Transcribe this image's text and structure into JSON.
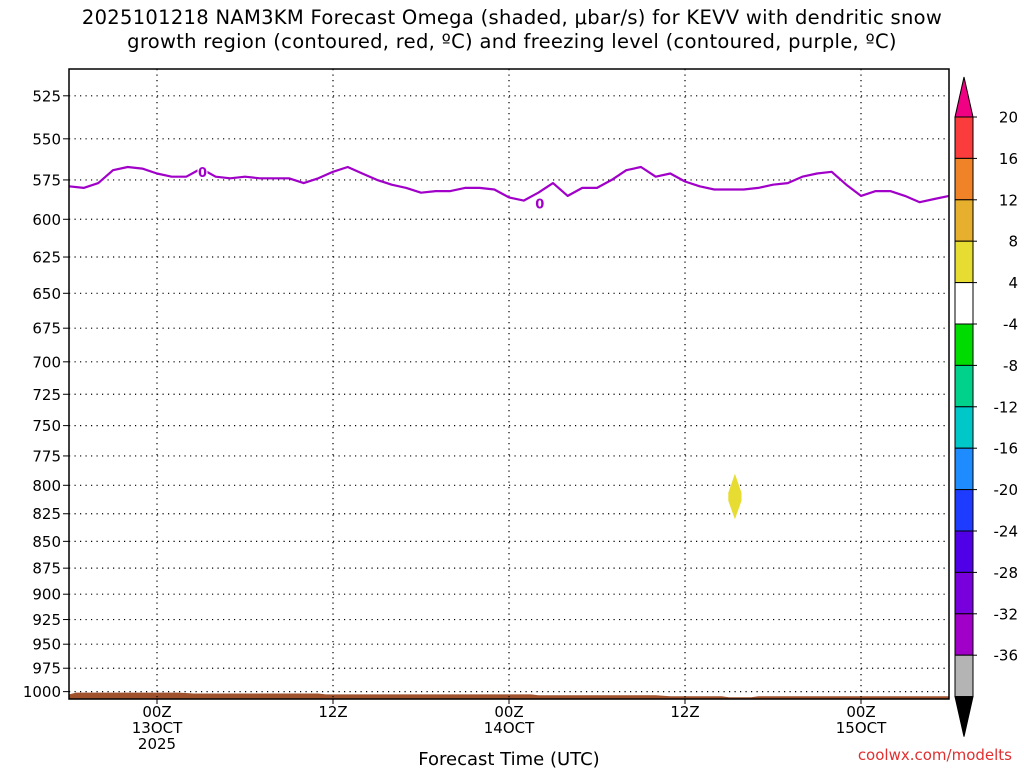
{
  "chart_data": {
    "type": "time-height",
    "title_line1": "2025101218 NAM3KM Forecast Omega (shaded, μbar/s) for KEVV with dendritic snow",
    "title_line2": "growth region (contoured, red, ºC) and freezing level (contoured, purple, ºC)",
    "xlabel": "Forecast Time (UTC)",
    "credit": "coolwx.com/modelts",
    "x_unit": "hours since 2025-10-12 18Z",
    "xlim": [
      0,
      60
    ],
    "ylim": [
      510,
      1008
    ],
    "y_ticks": [
      525,
      550,
      575,
      600,
      625,
      650,
      675,
      700,
      725,
      750,
      775,
      800,
      825,
      850,
      875,
      900,
      925,
      950,
      975,
      1000
    ],
    "x_ticks": [
      {
        "x": 6,
        "lines": [
          "00Z",
          "13OCT",
          "2025"
        ]
      },
      {
        "x": 18,
        "lines": [
          "12Z"
        ]
      },
      {
        "x": 30,
        "lines": [
          "00Z",
          "14OCT"
        ]
      },
      {
        "x": 42,
        "lines": [
          "12Z"
        ]
      },
      {
        "x": 54,
        "lines": [
          "00Z",
          "15OCT"
        ]
      }
    ],
    "freezing_level": {
      "color": "#a000c8",
      "label": "0",
      "label_points": [
        [
          9.1,
          570
        ],
        [
          32.1,
          590
        ]
      ],
      "x": [
        0,
        1,
        2,
        3,
        4,
        5,
        6,
        7,
        8,
        9,
        10,
        11,
        12,
        13,
        14,
        15,
        16,
        17,
        18,
        19,
        20,
        21,
        22,
        23,
        24,
        25,
        26,
        27,
        28,
        29,
        30,
        31,
        32,
        33,
        34,
        35,
        36,
        37,
        38,
        39,
        40,
        41,
        42,
        43,
        44,
        45,
        46,
        47,
        48,
        49,
        50,
        51,
        52,
        53,
        54,
        55,
        56,
        57,
        58,
        59,
        60
      ],
      "p": [
        579,
        580,
        577,
        569,
        567,
        568,
        571,
        573,
        573,
        568,
        573,
        574,
        573,
        574,
        574,
        574,
        577,
        574,
        570,
        567,
        571,
        575,
        578,
        580,
        583,
        582,
        582,
        580,
        580,
        581,
        586,
        588,
        583,
        577,
        585,
        580,
        580,
        575,
        569,
        567,
        573,
        571,
        576,
        579,
        581,
        581,
        581,
        580,
        578,
        577,
        573,
        571,
        570,
        578,
        585,
        582,
        582,
        585,
        589,
        587,
        585
      ]
    },
    "omega_shading": [
      {
        "label": "4 to 8",
        "color": "#e6dc32",
        "center": [
          45.4,
          810
        ],
        "half_width_hours": 0.45,
        "half_height_mb": 20
      }
    ],
    "terrain": {
      "color": "#a0522d",
      "x": [
        0,
        0.5,
        7.5,
        8.5,
        17.0,
        17.5,
        31.5,
        32.0,
        40.0,
        41.0,
        44.5,
        45.0,
        46.5,
        47.0,
        60
      ],
      "p": [
        1003,
        1001,
        1001,
        1002,
        1002,
        1003,
        1003,
        1004,
        1004,
        1005,
        1005,
        1006,
        1006,
        1005,
        1005
      ]
    },
    "colorbar": {
      "colors": [
        "#000000",
        "#b4b4b4",
        "#a000c8",
        "#7800dc",
        "#5000e6",
        "#1e3cff",
        "#1e8cff",
        "#00c8c8",
        "#00d28c",
        "#00dc00",
        "#ffffff",
        "#e6dc32",
        "#e6af2d",
        "#f08228",
        "#fa3c3c",
        "#f00082"
      ],
      "labels": [
        "20",
        "16",
        "12",
        "8",
        "4",
        "-4",
        "-8",
        "-12",
        "-16",
        "-20",
        "-24",
        "-28",
        "-32",
        "-36"
      ]
    }
  }
}
